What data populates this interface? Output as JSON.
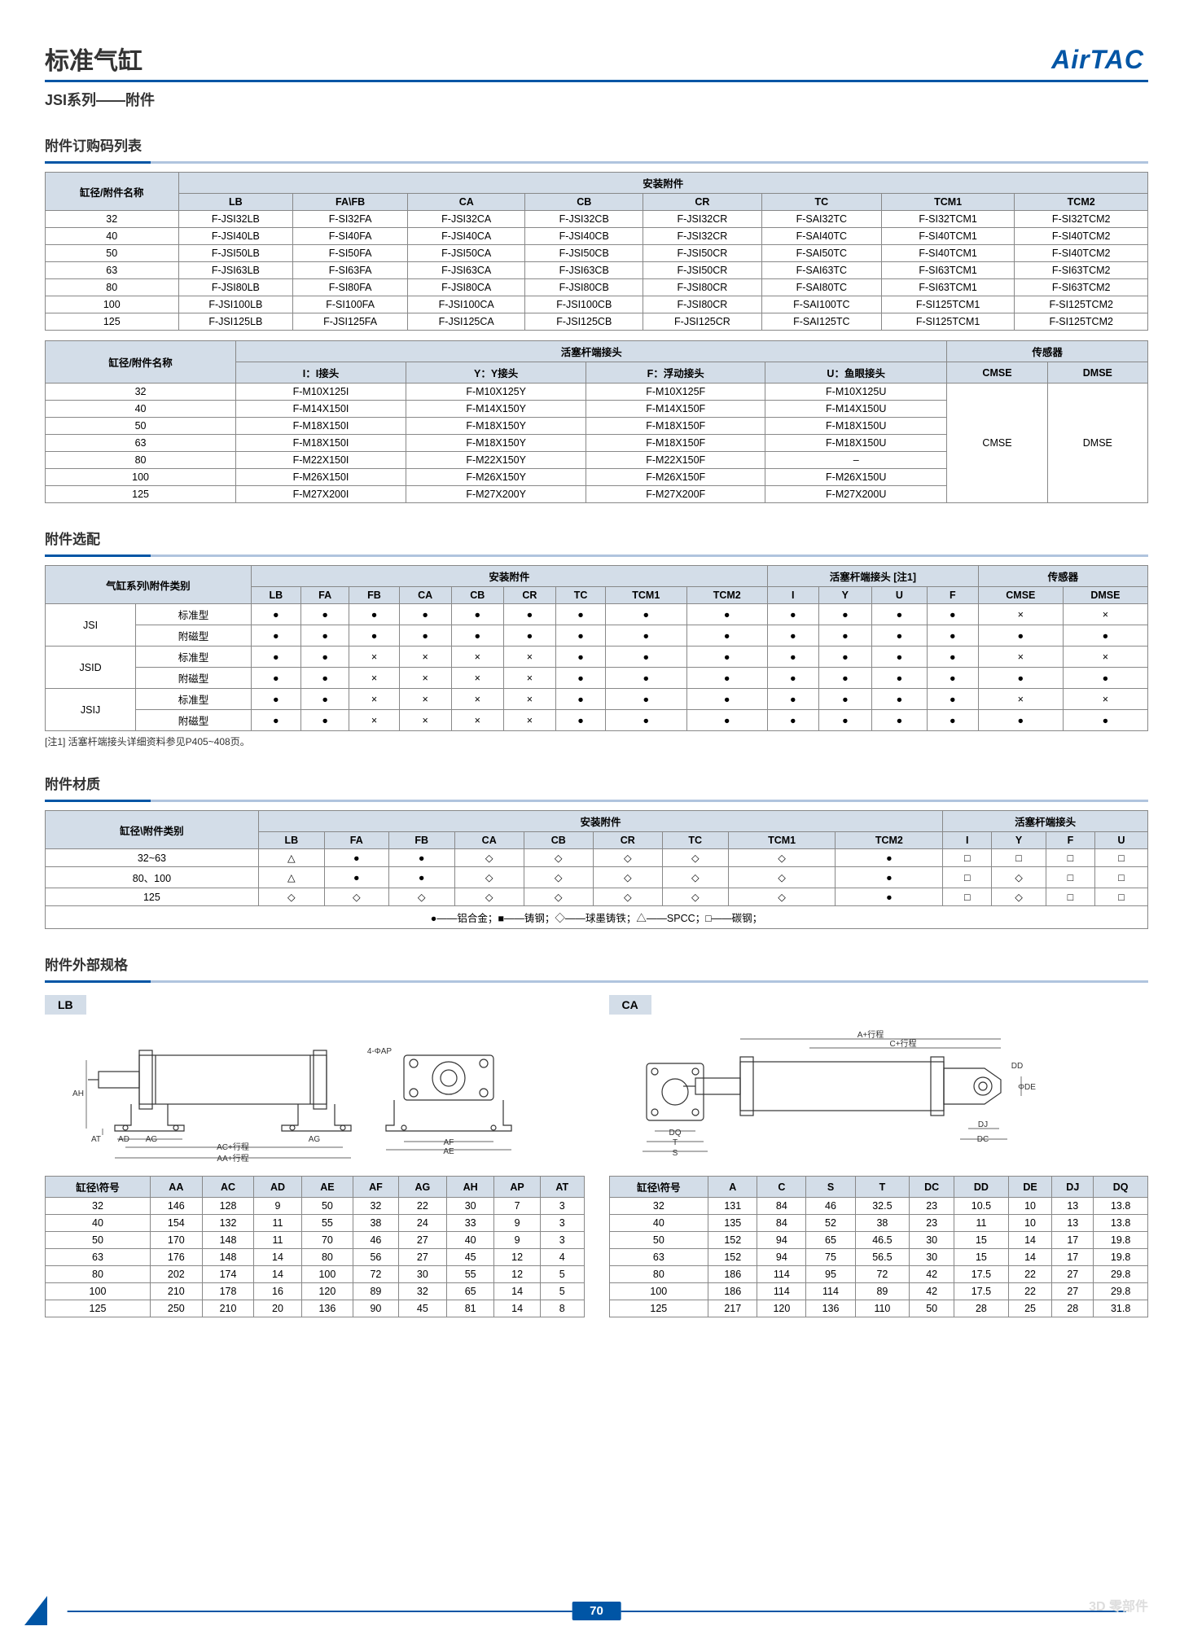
{
  "brand": "AirTAC",
  "title": "标准气缸",
  "subtitle": "JSI系列——附件",
  "page_number": "70",
  "watermark": "3D 零部件",
  "colors": {
    "primary": "#0055a5",
    "header_bg": "#d3dde8",
    "border": "#888888"
  },
  "section1": {
    "title": "附件订购码列表",
    "table1": {
      "rowhead": "缸径/附件名称",
      "grouphead": "安装附件",
      "cols": [
        "LB",
        "FA\\FB",
        "CA",
        "CB",
        "CR",
        "TC",
        "TCM1",
        "TCM2"
      ],
      "rows": [
        {
          "k": "32",
          "v": [
            "F-JSI32LB",
            "F-SI32FA",
            "F-JSI32CA",
            "F-JSI32CB",
            "F-JSI32CR",
            "F-SAI32TC",
            "F-SI32TCM1",
            "F-SI32TCM2"
          ]
        },
        {
          "k": "40",
          "v": [
            "F-JSI40LB",
            "F-SI40FA",
            "F-JSI40CA",
            "F-JSI40CB",
            "F-JSI32CR",
            "F-SAI40TC",
            "F-SI40TCM1",
            "F-SI40TCM2"
          ]
        },
        {
          "k": "50",
          "v": [
            "F-JSI50LB",
            "F-SI50FA",
            "F-JSI50CA",
            "F-JSI50CB",
            "F-JSI50CR",
            "F-SAI50TC",
            "F-SI40TCM1",
            "F-SI40TCM2"
          ]
        },
        {
          "k": "63",
          "v": [
            "F-JSI63LB",
            "F-SI63FA",
            "F-JSI63CA",
            "F-JSI63CB",
            "F-JSI50CR",
            "F-SAI63TC",
            "F-SI63TCM1",
            "F-SI63TCM2"
          ]
        },
        {
          "k": "80",
          "v": [
            "F-JSI80LB",
            "F-SI80FA",
            "F-JSI80CA",
            "F-JSI80CB",
            "F-JSI80CR",
            "F-SAI80TC",
            "F-SI63TCM1",
            "F-SI63TCM2"
          ]
        },
        {
          "k": "100",
          "v": [
            "F-JSI100LB",
            "F-SI100FA",
            "F-JSI100CA",
            "F-JSI100CB",
            "F-JSI80CR",
            "F-SAI100TC",
            "F-SI125TCM1",
            "F-SI125TCM2"
          ]
        },
        {
          "k": "125",
          "v": [
            "F-JSI125LB",
            "F-JSI125FA",
            "F-JSI125CA",
            "F-JSI125CB",
            "F-JSI125CR",
            "F-SAI125TC",
            "F-SI125TCM1",
            "F-SI125TCM2"
          ]
        }
      ]
    },
    "table2": {
      "rowhead": "缸径/附件名称",
      "group1": "活塞杆端接头",
      "group2": "传感器",
      "cols": [
        "I：I接头",
        "Y：Y接头",
        "F：浮动接头",
        "U：鱼眼接头",
        "CMSE",
        "DMSE"
      ],
      "merged_sensor": [
        "CMSE",
        "DMSE"
      ],
      "rows": [
        {
          "k": "32",
          "v": [
            "F-M10X125I",
            "F-M10X125Y",
            "F-M10X125F",
            "F-M10X125U"
          ]
        },
        {
          "k": "40",
          "v": [
            "F-M14X150I",
            "F-M14X150Y",
            "F-M14X150F",
            "F-M14X150U"
          ]
        },
        {
          "k": "50",
          "v": [
            "F-M18X150I",
            "F-M18X150Y",
            "F-M18X150F",
            "F-M18X150U"
          ]
        },
        {
          "k": "63",
          "v": [
            "F-M18X150I",
            "F-M18X150Y",
            "F-M18X150F",
            "F-M18X150U"
          ]
        },
        {
          "k": "80",
          "v": [
            "F-M22X150I",
            "F-M22X150Y",
            "F-M22X150F",
            "–"
          ]
        },
        {
          "k": "100",
          "v": [
            "F-M26X150I",
            "F-M26X150Y",
            "F-M26X150F",
            "F-M26X150U"
          ]
        },
        {
          "k": "125",
          "v": [
            "F-M27X200I",
            "F-M27X200Y",
            "F-M27X200F",
            "F-M27X200U"
          ]
        }
      ]
    }
  },
  "section2": {
    "title": "附件选配",
    "note": "[注1] 活塞杆端接头详细资料参见P405~408页。",
    "rowhead": "气缸系列\\附件类别",
    "group1": "安装附件",
    "group2": "活塞杆端接头 [注1]",
    "group3": "传感器",
    "cols": [
      "LB",
      "FA",
      "FB",
      "CA",
      "CB",
      "CR",
      "TC",
      "TCM1",
      "TCM2",
      "I",
      "Y",
      "U",
      "F",
      "CMSE",
      "DMSE"
    ],
    "series": [
      {
        "name": "JSI",
        "types": [
          {
            "t": "标准型",
            "v": [
              "●",
              "●",
              "●",
              "●",
              "●",
              "●",
              "●",
              "●",
              "●",
              "●",
              "●",
              "●",
              "●",
              "×",
              "×"
            ]
          },
          {
            "t": "附磁型",
            "v": [
              "●",
              "●",
              "●",
              "●",
              "●",
              "●",
              "●",
              "●",
              "●",
              "●",
              "●",
              "●",
              "●",
              "●",
              "●"
            ]
          }
        ]
      },
      {
        "name": "JSID",
        "types": [
          {
            "t": "标准型",
            "v": [
              "●",
              "●",
              "×",
              "×",
              "×",
              "×",
              "●",
              "●",
              "●",
              "●",
              "●",
              "●",
              "●",
              "×",
              "×"
            ]
          },
          {
            "t": "附磁型",
            "v": [
              "●",
              "●",
              "×",
              "×",
              "×",
              "×",
              "●",
              "●",
              "●",
              "●",
              "●",
              "●",
              "●",
              "●",
              "●"
            ]
          }
        ]
      },
      {
        "name": "JSIJ",
        "types": [
          {
            "t": "标准型",
            "v": [
              "●",
              "●",
              "×",
              "×",
              "×",
              "×",
              "●",
              "●",
              "●",
              "●",
              "●",
              "●",
              "●",
              "×",
              "×"
            ]
          },
          {
            "t": "附磁型",
            "v": [
              "●",
              "●",
              "×",
              "×",
              "×",
              "×",
              "●",
              "●",
              "●",
              "●",
              "●",
              "●",
              "●",
              "●",
              "●"
            ]
          }
        ]
      }
    ]
  },
  "section3": {
    "title": "附件材质",
    "rowhead": "缸径\\附件类别",
    "group1": "安装附件",
    "group2": "活塞杆端接头",
    "cols": [
      "LB",
      "FA",
      "FB",
      "CA",
      "CB",
      "CR",
      "TC",
      "TCM1",
      "TCM2",
      "I",
      "Y",
      "F",
      "U"
    ],
    "rows": [
      {
        "k": "32~63",
        "v": [
          "△",
          "●",
          "●",
          "◇",
          "◇",
          "◇",
          "◇",
          "◇",
          "●",
          "□",
          "□",
          "□",
          "□"
        ]
      },
      {
        "k": "80、100",
        "v": [
          "△",
          "●",
          "●",
          "◇",
          "◇",
          "◇",
          "◇",
          "◇",
          "●",
          "□",
          "◇",
          "□",
          "□"
        ]
      },
      {
        "k": "125",
        "v": [
          "◇",
          "◇",
          "◇",
          "◇",
          "◇",
          "◇",
          "◇",
          "◇",
          "●",
          "□",
          "◇",
          "□",
          "□"
        ]
      }
    ],
    "legend": "●——铝合金；■——铸钢；◇——球墨铸铁；△——SPCC；□——碳钢；"
  },
  "section4": {
    "title": "附件外部规格",
    "left": {
      "label": "LB",
      "dim_labels": [
        "AH",
        "AT",
        "AD",
        "AG",
        "AC+行程",
        "AA+行程",
        "4-ΦAP",
        "AF",
        "AE"
      ],
      "head": "缸径\\符号",
      "cols": [
        "AA",
        "AC",
        "AD",
        "AE",
        "AF",
        "AG",
        "AH",
        "AP",
        "AT"
      ],
      "rows": [
        {
          "k": "32",
          "v": [
            "146",
            "128",
            "9",
            "50",
            "32",
            "22",
            "30",
            "7",
            "3"
          ]
        },
        {
          "k": "40",
          "v": [
            "154",
            "132",
            "11",
            "55",
            "38",
            "24",
            "33",
            "9",
            "3"
          ]
        },
        {
          "k": "50",
          "v": [
            "170",
            "148",
            "11",
            "70",
            "46",
            "27",
            "40",
            "9",
            "3"
          ]
        },
        {
          "k": "63",
          "v": [
            "176",
            "148",
            "14",
            "80",
            "56",
            "27",
            "45",
            "12",
            "4"
          ]
        },
        {
          "k": "80",
          "v": [
            "202",
            "174",
            "14",
            "100",
            "72",
            "30",
            "55",
            "12",
            "5"
          ]
        },
        {
          "k": "100",
          "v": [
            "210",
            "178",
            "16",
            "120",
            "89",
            "32",
            "65",
            "14",
            "5"
          ]
        },
        {
          "k": "125",
          "v": [
            "250",
            "210",
            "20",
            "136",
            "90",
            "45",
            "81",
            "14",
            "8"
          ]
        }
      ]
    },
    "right": {
      "label": "CA",
      "dim_labels": [
        "A+行程",
        "C+行程",
        "DD",
        "ΦDE",
        "DJ",
        "DC",
        "DQ",
        "T",
        "S"
      ],
      "head": "缸径\\符号",
      "cols": [
        "A",
        "C",
        "S",
        "T",
        "DC",
        "DD",
        "DE",
        "DJ",
        "DQ"
      ],
      "rows": [
        {
          "k": "32",
          "v": [
            "131",
            "84",
            "46",
            "32.5",
            "23",
            "10.5",
            "10",
            "13",
            "13.8"
          ]
        },
        {
          "k": "40",
          "v": [
            "135",
            "84",
            "52",
            "38",
            "23",
            "11",
            "10",
            "13",
            "13.8"
          ]
        },
        {
          "k": "50",
          "v": [
            "152",
            "94",
            "65",
            "46.5",
            "30",
            "15",
            "14",
            "17",
            "19.8"
          ]
        },
        {
          "k": "63",
          "v": [
            "152",
            "94",
            "75",
            "56.5",
            "30",
            "15",
            "14",
            "17",
            "19.8"
          ]
        },
        {
          "k": "80",
          "v": [
            "186",
            "114",
            "95",
            "72",
            "42",
            "17.5",
            "22",
            "27",
            "29.8"
          ]
        },
        {
          "k": "100",
          "v": [
            "186",
            "114",
            "114",
            "89",
            "42",
            "17.5",
            "22",
            "27",
            "29.8"
          ]
        },
        {
          "k": "125",
          "v": [
            "217",
            "120",
            "136",
            "110",
            "50",
            "28",
            "25",
            "28",
            "31.8"
          ]
        }
      ]
    }
  }
}
